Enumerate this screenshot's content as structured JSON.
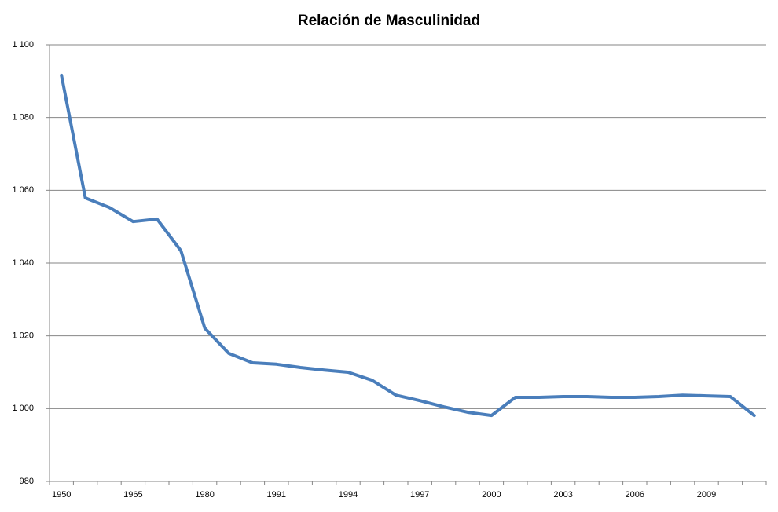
{
  "chart_data": {
    "type": "line",
    "title": "Relación de Masculinidad",
    "categories": [
      "1950",
      null,
      null,
      "1965",
      null,
      null,
      "1980",
      null,
      null,
      "1991",
      null,
      null,
      "1994",
      null,
      null,
      "1997",
      null,
      null,
      "2000",
      null,
      null,
      "2003",
      null,
      null,
      "2006",
      null,
      null,
      "2009",
      null,
      null
    ],
    "series": [
      {
        "name": "Relación de Masculinidad",
        "color": "#4a7ebb",
        "values": [
          1091.6,
          1057.9,
          1055.3,
          1051.4,
          1052.1,
          1043.4,
          1022.1,
          1015.2,
          1012.6,
          1012.2,
          1011.3,
          1010.6,
          1010.0,
          1007.8,
          1003.7,
          1002.2,
          1000.5,
          999.0,
          998.1,
          1003.1,
          1003.1,
          1003.3,
          1003.3,
          1003.1,
          1003.1,
          1003.3,
          1003.7,
          1003.5,
          1003.3,
          998.1
        ]
      }
    ],
    "ylim": [
      980,
      1100
    ],
    "yticks": [
      980,
      {
        "value": 1000,
        "label": "1 000"
      },
      {
        "value": 1020,
        "label": "1 020"
      },
      {
        "value": 1040,
        "label": "1 040"
      },
      {
        "value": 1060,
        "label": "1 060"
      },
      {
        "value": 1080,
        "label": "1 080"
      },
      {
        "value": 1100,
        "label": "1 100"
      }
    ],
    "grid": true
  }
}
